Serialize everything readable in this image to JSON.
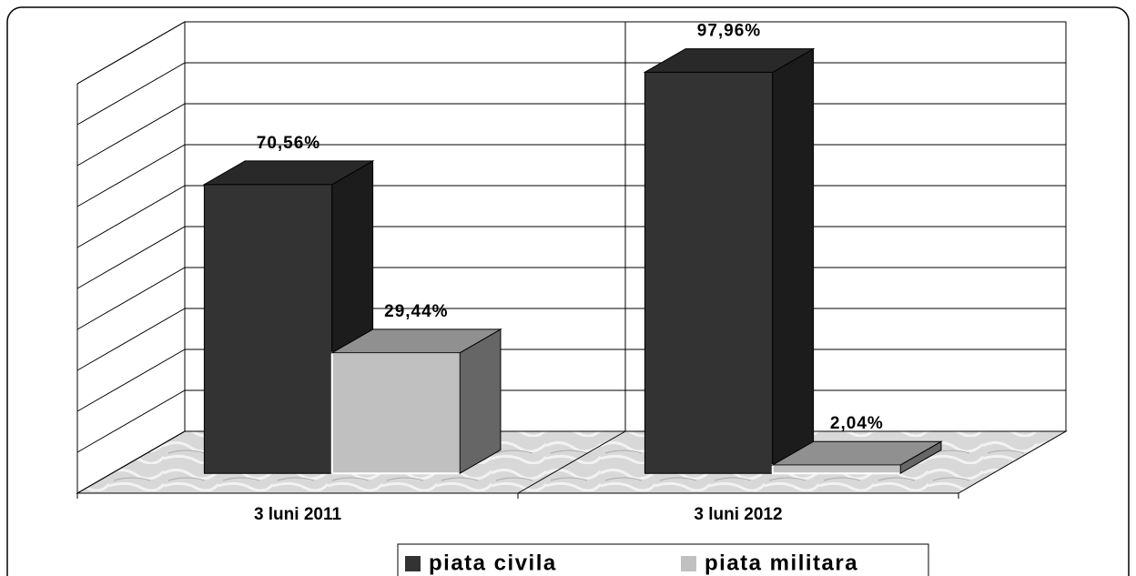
{
  "chart_data": {
    "type": "bar3d",
    "categories": [
      "3 luni 2011",
      "3 luni 2012"
    ],
    "series": [
      {
        "name": "piata civila",
        "color": "#333333",
        "values": [
          70.56,
          97.96
        ],
        "value_labels": [
          "70,56%",
          "97,96%"
        ]
      },
      {
        "name": "piata militara",
        "color": "#c0c0c0",
        "values": [
          29.44,
          2.04
        ],
        "value_labels": [
          "29,44%",
          "2,04%"
        ]
      }
    ],
    "ylim": [
      0,
      100
    ],
    "yticks": [
      0,
      10,
      20,
      30,
      40,
      50,
      60,
      70,
      80,
      90,
      100
    ],
    "grid": true,
    "legend": "bottom"
  }
}
